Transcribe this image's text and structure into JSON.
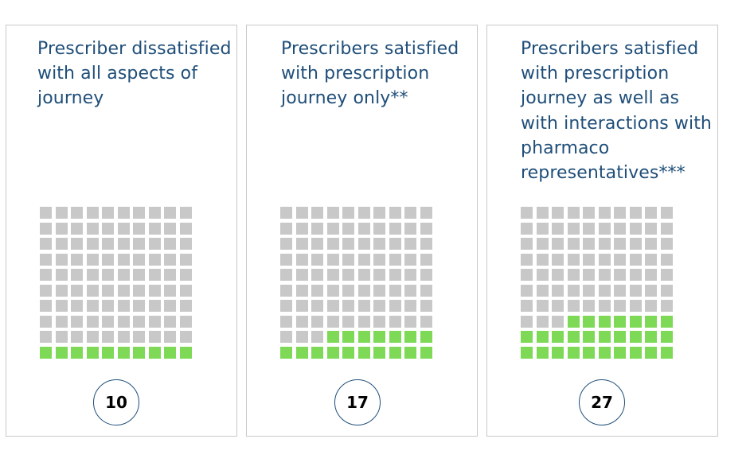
{
  "colors": {
    "filled": "#7ed957",
    "empty": "#c8c8c8",
    "title": "#1f4e79",
    "circle_border": "#1f4e79"
  },
  "chart_data": [
    {
      "type": "waffle",
      "title": "Prescriber dissatisfied with all aspects of journey",
      "grid": [
        10,
        10
      ],
      "total": 100,
      "value": 10,
      "label": "10"
    },
    {
      "type": "waffle",
      "title": "Prescribers satisfied with prescription journey only**",
      "grid": [
        10,
        10
      ],
      "total": 100,
      "value": 17,
      "label": "17"
    },
    {
      "type": "waffle",
      "title": "Prescribers satisfied with prescription journey as well as with interactions with pharmaco representatives***",
      "grid": [
        10,
        10
      ],
      "total": 100,
      "value": 27,
      "label": "27"
    }
  ]
}
